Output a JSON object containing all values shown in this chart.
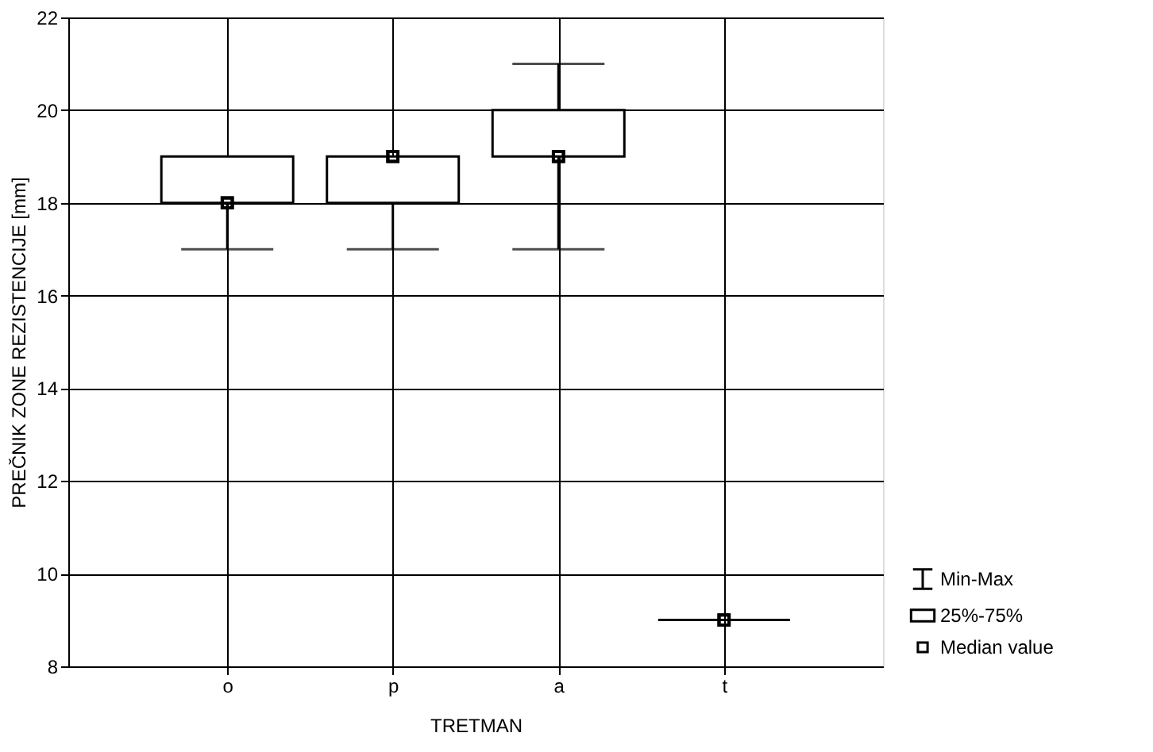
{
  "chart_data": {
    "type": "box",
    "xlabel": "TRETMAN",
    "ylabel": "PREČNIK ZONE REZISTENCIJE [mm]",
    "categories": [
      "o",
      "p",
      "a",
      "t"
    ],
    "color": "#000000",
    "boxes": [
      {
        "low": 17,
        "q1": 18,
        "median": 18,
        "q3": 19,
        "high": 19
      },
      {
        "low": 17,
        "q1": 18,
        "median": 19,
        "q3": 19,
        "high": 19
      },
      {
        "low": 17,
        "q1": 19,
        "median": 19,
        "q3": 20,
        "high": 21
      },
      {
        "low": 9,
        "q1": 9,
        "median": 9,
        "q3": 9,
        "high": 9
      }
    ],
    "series": [
      {
        "type": "scatter",
        "name": "Median value",
        "color": "#000000",
        "marker": "square",
        "x": [
          "o",
          "p",
          "a",
          "t"
        ],
        "values": [
          18,
          19,
          19,
          9
        ]
      }
    ],
    "ylim": [
      8,
      22
    ],
    "yticks": [
      8,
      10,
      12,
      14,
      16,
      18,
      20,
      22
    ],
    "grid": true,
    "legend": "bottom right",
    "annotations": [
      "Min-Max",
      "25%-75%"
    ]
  }
}
